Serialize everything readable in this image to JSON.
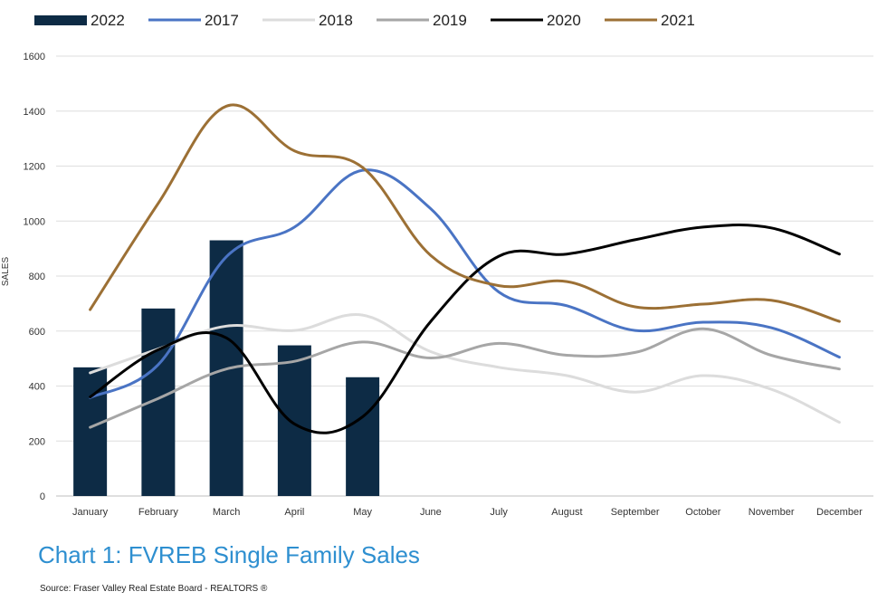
{
  "chart_data": {
    "type": "bar+line",
    "title": "",
    "xlabel": "",
    "ylabel": "SALES",
    "ylim": [
      0,
      1600
    ],
    "yticks": [
      0,
      200,
      400,
      600,
      800,
      1000,
      1200,
      1400,
      1600
    ],
    "grid": true,
    "legend_position": "top",
    "categories": [
      "January",
      "February",
      "March",
      "April",
      "May",
      "June",
      "July",
      "August",
      "September",
      "October",
      "November",
      "December"
    ],
    "bars": {
      "name": "2022",
      "color": "#0d2b45",
      "values": [
        468,
        682,
        930,
        548,
        432
      ]
    },
    "series": [
      {
        "name": "2017",
        "color": "#4a74c4",
        "values": [
          358,
          478,
          870,
          978,
          1185,
          1045,
          742,
          692,
          602,
          632,
          612,
          505
        ]
      },
      {
        "name": "2018",
        "color": "#dcdcdc",
        "values": [
          448,
          535,
          618,
          602,
          658,
          525,
          468,
          438,
          378,
          438,
          388,
          268
        ]
      },
      {
        "name": "2019",
        "color": "#a6a6a6",
        "values": [
          250,
          355,
          462,
          490,
          560,
          502,
          555,
          512,
          522,
          608,
          512,
          462
        ]
      },
      {
        "name": "2020",
        "color": "#000000",
        "values": [
          360,
          532,
          575,
          262,
          288,
          635,
          872,
          880,
          932,
          978,
          975,
          880
        ]
      },
      {
        "name": "2021",
        "color": "#9c7035",
        "values": [
          678,
          1065,
          1418,
          1255,
          1195,
          875,
          765,
          780,
          688,
          698,
          712,
          635
        ]
      }
    ]
  },
  "caption": "Chart 1: FVREB Single Family Sales",
  "source": "Source: Fraser Valley Real Estate Board - REALTORS ®"
}
